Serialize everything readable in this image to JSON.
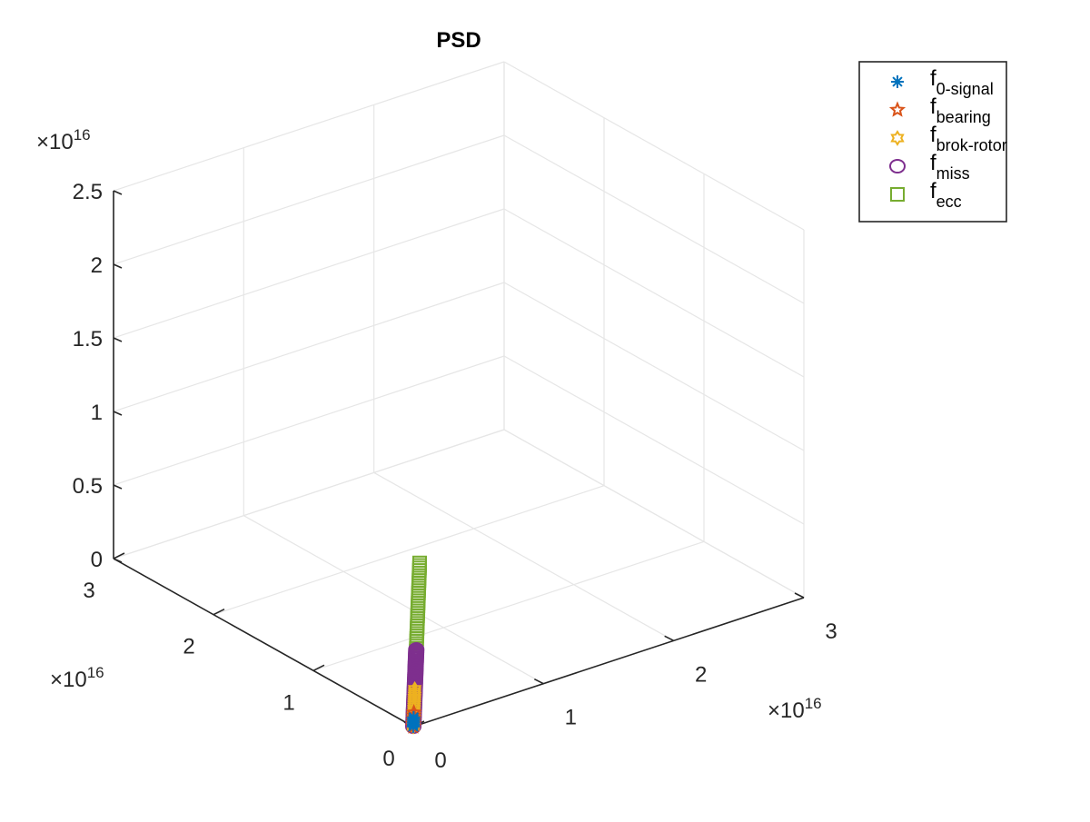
{
  "chart_data": {
    "type": "scatter",
    "title": "PSD",
    "projection": "3d",
    "grid": true,
    "box": false,
    "legend_placement": "top-right",
    "xlim": [
      0,
      3e+16
    ],
    "ylim": [
      0,
      3e+16
    ],
    "zlim": [
      0,
      2.5e+16
    ],
    "x_ticks": [
      0,
      1e+16,
      2e+16,
      3e+16
    ],
    "y_ticks": [
      0,
      1e+16,
      2e+16,
      3e+16
    ],
    "z_ticks": [
      0,
      5000000000000000.0,
      1e+16,
      1.5e+16,
      2e+16,
      2.5e+16
    ],
    "x_tick_labels": [
      "0",
      "1",
      "2",
      "3"
    ],
    "y_tick_labels": [
      "0",
      "1",
      "2",
      "3"
    ],
    "z_tick_labels": [
      "0",
      "0.5",
      "1",
      "1.5",
      "2",
      "2.5"
    ],
    "x_exponent_label": "×10",
    "x_exponent_power": "16",
    "y_exponent_label": "×10",
    "y_exponent_power": "16",
    "z_exponent_label": "×10",
    "z_exponent_power": "16",
    "series": [
      {
        "name": "0-signal",
        "legend_base": "f",
        "legend_sub": "0-signal",
        "marker": "asterisk",
        "color": "#0072BD",
        "t_start": 0.0,
        "t_end": 0.004,
        "count": 6,
        "note_xyz": "points lie along x=y, z≈0.83x"
      },
      {
        "name": "bearing",
        "legend_base": "f",
        "legend_sub": "bearing",
        "marker": "pentagram",
        "color": "#D95319",
        "t_start": 0.0,
        "t_end": 0.006,
        "count": 6
      },
      {
        "name": "brok-rotor",
        "legend_base": "f",
        "legend_sub": "brok-rotor",
        "marker": "hexagram",
        "color": "#EDB120",
        "t_start": 0.0,
        "t_end": 0.016,
        "count": 18
      },
      {
        "name": "miss",
        "legend_base": "f",
        "legend_sub": "miss",
        "marker": "circle",
        "color": "#7E2F8E",
        "t_start": 0.0,
        "t_end": 0.033,
        "count": 48
      },
      {
        "name": "ecc",
        "legend_base": "f",
        "legend_sub": "ecc",
        "marker": "square",
        "color": "#77AC30",
        "t_start": 0.028,
        "t_end": 0.07,
        "count": 40
      }
    ]
  }
}
